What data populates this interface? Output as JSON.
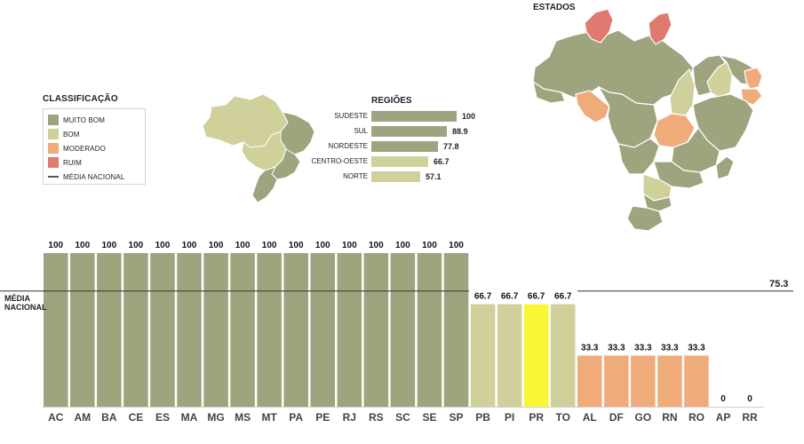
{
  "legend": {
    "title": "CLASSIFICAÇÃO",
    "items": [
      {
        "label": "MUITO BOM",
        "color": "#9ea47e"
      },
      {
        "label": "BOM",
        "color": "#cfd09a"
      },
      {
        "label": "MODERADO",
        "color": "#efac7a"
      },
      {
        "label": "RUIM",
        "color": "#e07a70"
      }
    ],
    "average_label": "MÉDIA NACIONAL"
  },
  "regions": {
    "title": "REGIÕES",
    "items": [
      {
        "label": "SUDESTE",
        "value": 100,
        "value_text": "100",
        "color": "#9ea47e"
      },
      {
        "label": "SUL",
        "value": 88.9,
        "value_text": "88.9",
        "color": "#9ea47e"
      },
      {
        "label": "NORDESTE",
        "value": 77.8,
        "value_text": "77.8",
        "color": "#9ea47e"
      },
      {
        "label": "CENTRO-OESTE",
        "value": 66.7,
        "value_text": "66.7",
        "color": "#cfd09a"
      },
      {
        "label": "NORTE",
        "value": 57.1,
        "value_text": "57.1",
        "color": "#cfd09a"
      }
    ]
  },
  "states_map": {
    "title": "ESTADOS"
  },
  "average": {
    "label_line1": "MÉDIA",
    "label_line2": "NACIONAL",
    "value_text": "75.3",
    "value": 75.3
  },
  "chart_data": {
    "type": "bar",
    "categories": [
      "AC",
      "AM",
      "BA",
      "CE",
      "ES",
      "MA",
      "MG",
      "MS",
      "MT",
      "PA",
      "PE",
      "RJ",
      "RS",
      "SC",
      "SE",
      "SP",
      "PB",
      "PI",
      "PR",
      "TO",
      "AL",
      "DF",
      "GO",
      "RN",
      "RO",
      "AP",
      "RR"
    ],
    "values": [
      100,
      100,
      100,
      100,
      100,
      100,
      100,
      100,
      100,
      100,
      100,
      100,
      100,
      100,
      100,
      100,
      66.7,
      66.7,
      66.7,
      66.7,
      33.3,
      33.3,
      33.3,
      33.3,
      33.3,
      0,
      0
    ],
    "value_labels": [
      "100",
      "100",
      "100",
      "100",
      "100",
      "100",
      "100",
      "100",
      "100",
      "100",
      "100",
      "100",
      "100",
      "100",
      "100",
      "100",
      "66.7",
      "66.7",
      "66.7",
      "66.7",
      "33.3",
      "33.3",
      "33.3",
      "33.3",
      "33.3",
      "0",
      "0"
    ],
    "colors": [
      "#9ea47e",
      "#9ea47e",
      "#9ea47e",
      "#9ea47e",
      "#9ea47e",
      "#9ea47e",
      "#9ea47e",
      "#9ea47e",
      "#9ea47e",
      "#9ea47e",
      "#9ea47e",
      "#9ea47e",
      "#9ea47e",
      "#9ea47e",
      "#9ea47e",
      "#9ea47e",
      "#cfd09a",
      "#cfd09a",
      "#f7f733",
      "#cfd09a",
      "#efac7a",
      "#efac7a",
      "#efac7a",
      "#efac7a",
      "#efac7a",
      "#efac7a",
      "#efac7a"
    ],
    "reference_line": 75.3,
    "ylim": [
      0,
      100
    ]
  }
}
